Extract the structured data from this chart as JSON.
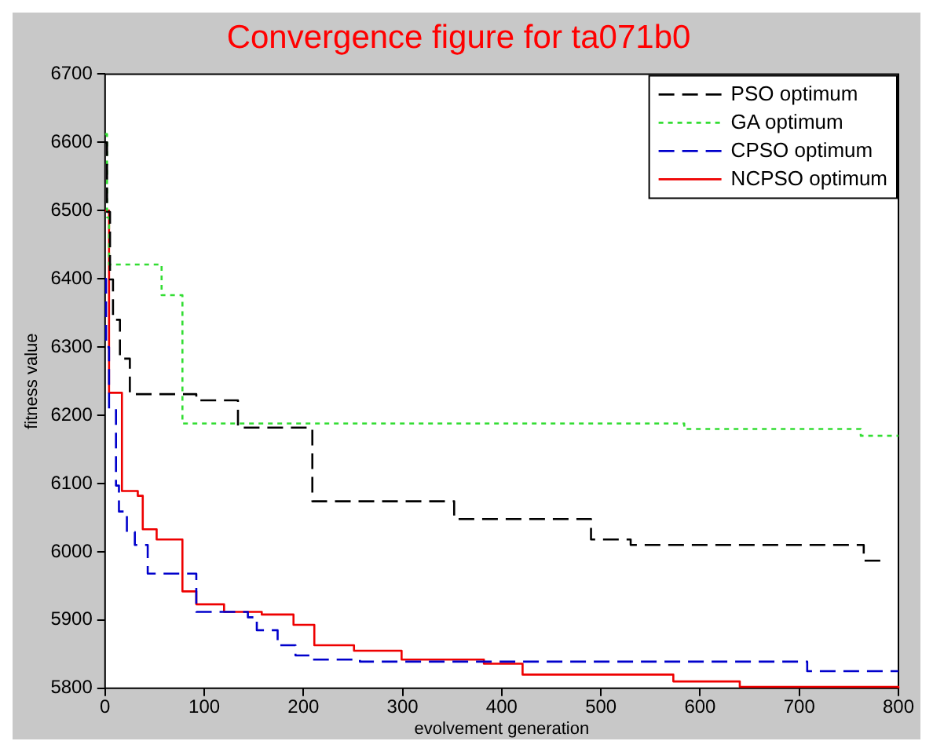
{
  "chart_data": {
    "type": "step",
    "title": "Convergence figure for ta071b0",
    "xlabel": "evolvement generation",
    "ylabel": "fitness value",
    "xlim": [
      0,
      800
    ],
    "xticks": [
      0,
      100,
      200,
      300,
      400,
      500,
      600,
      700,
      800
    ],
    "ylim": [
      5800,
      6700
    ],
    "yticks": [
      5800,
      5900,
      6000,
      6100,
      6200,
      6300,
      6400,
      6500,
      6600,
      6700
    ],
    "grid": false,
    "legend": "top right",
    "series": [
      {
        "name": "PSO optimum",
        "color": "#000000",
        "line_style": "dashed",
        "x": [
          0,
          2,
          5,
          8,
          15,
          25,
          92,
          134,
          209,
          352,
          490,
          530,
          765,
          786
        ],
        "values": [
          6600,
          6498,
          6399,
          6340,
          6283,
          6231,
          6222,
          6182,
          6074,
          6048,
          6018,
          6010,
          5987,
          5987
        ]
      },
      {
        "name": "GA optimum",
        "color": "#33dd33",
        "line_style": "dotted",
        "x": [
          0,
          2,
          4,
          57,
          78,
          584,
          762,
          800
        ],
        "values": [
          6612,
          6490,
          6421,
          6376,
          6188,
          6180,
          6170,
          6170
        ]
      },
      {
        "name": "CPSO optimum",
        "color": "#0000cc",
        "line_style": "dashed",
        "x": [
          0,
          1,
          4,
          11,
          14,
          22,
          30,
          43,
          92,
          144,
          153,
          174,
          192,
          209,
          257,
          708,
          800
        ],
        "values": [
          6400,
          6300,
          6210,
          6097,
          6059,
          6029,
          6010,
          5968,
          5912,
          5904,
          5885,
          5863,
          5848,
          5842,
          5839,
          5825,
          5825
        ]
      },
      {
        "name": "NCPSO optimum",
        "color": "#ee0000",
        "line_style": "solid",
        "x": [
          0,
          4,
          17,
          33,
          38,
          52,
          78,
          92,
          120,
          158,
          190,
          211,
          251,
          299,
          382,
          421,
          573,
          640,
          800
        ],
        "values": [
          6500,
          6233,
          6089,
          6082,
          6033,
          6018,
          5942,
          5923,
          5912,
          5908,
          5893,
          5863,
          5855,
          5842,
          5836,
          5820,
          5810,
          5802,
          5800
        ]
      }
    ]
  }
}
